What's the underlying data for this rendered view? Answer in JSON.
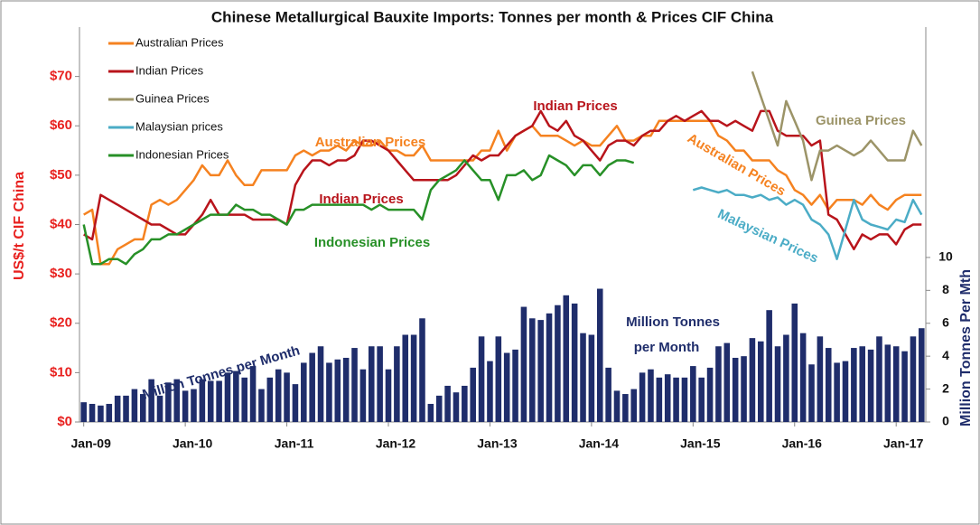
{
  "chart_data": {
    "type": "bar-line",
    "title": "Chinese Metallurgical Bauxite Imports: Tonnes per month & Prices CIF China",
    "y_label": "US$/t CIF China",
    "y2_label": "Million Tonnes Per Mth",
    "categories": [
      "Jan-09",
      null,
      null,
      null,
      null,
      null,
      null,
      null,
      null,
      null,
      null,
      null,
      "Jan-10",
      null,
      null,
      null,
      null,
      null,
      null,
      null,
      null,
      null,
      null,
      null,
      "Jan-11",
      null,
      null,
      null,
      null,
      null,
      null,
      null,
      null,
      null,
      null,
      null,
      "Jan-12",
      null,
      null,
      null,
      null,
      null,
      null,
      null,
      null,
      null,
      null,
      null,
      "Jan-13",
      null,
      null,
      null,
      null,
      null,
      null,
      null,
      null,
      null,
      null,
      null,
      "Jan-14",
      null,
      null,
      null,
      null,
      null,
      null,
      null,
      null,
      null,
      null,
      null,
      "Jan-15",
      null,
      null,
      null,
      null,
      null,
      null,
      null,
      null,
      null,
      null,
      null,
      "Jan-16",
      null,
      null,
      null,
      null,
      null,
      null,
      null,
      null,
      null,
      null,
      null,
      "Jan-17",
      null,
      null,
      null
    ],
    "ylim": [
      0,
      80
    ],
    "yticks": [
      {
        "value": 0,
        "label": "$0"
      },
      {
        "value": 10,
        "label": "$10"
      },
      {
        "value": 20,
        "label": "$20"
      },
      {
        "value": 30,
        "label": "$30"
      },
      {
        "value": 40,
        "label": "$40"
      },
      {
        "value": 50,
        "label": "$50"
      },
      {
        "value": 60,
        "label": "$60"
      },
      {
        "value": 70,
        "label": "$70"
      }
    ],
    "y2lim": [
      0,
      24
    ],
    "y2ticks": [
      0,
      2,
      4,
      6,
      8,
      10
    ],
    "series": [
      {
        "name": "Million Tonnes per Month",
        "kind": "bar",
        "axis": "y2",
        "color": "#1f2d6b",
        "values": [
          1.2,
          1.1,
          1.0,
          1.1,
          1.6,
          1.6,
          2.0,
          1.7,
          2.6,
          1.6,
          2.4,
          2.6,
          1.9,
          2.0,
          2.6,
          2.5,
          2.5,
          3.0,
          3.1,
          2.7,
          3.4,
          2.0,
          2.7,
          3.2,
          3.0,
          2.3,
          3.6,
          4.2,
          4.6,
          3.6,
          3.8,
          3.9,
          4.5,
          3.2,
          4.6,
          4.6,
          3.2,
          4.6,
          5.3,
          5.3,
          6.3,
          1.1,
          1.6,
          2.2,
          1.8,
          2.2,
          3.3,
          5.2,
          3.7,
          5.2,
          4.2,
          4.4,
          7.0,
          6.3,
          6.2,
          6.6,
          7.1,
          7.7,
          7.2,
          5.4,
          5.3,
          8.1,
          3.3,
          1.9,
          1.7,
          2.0,
          3.0,
          3.2,
          2.7,
          2.9,
          2.7,
          2.7,
          3.4,
          2.7,
          3.3,
          4.6,
          4.8,
          3.9,
          4.0,
          5.1,
          4.9,
          6.8,
          4.6,
          5.3,
          7.2,
          5.4,
          3.5,
          5.2,
          4.5,
          3.6,
          3.7,
          4.5,
          4.6,
          4.4,
          5.2,
          4.7,
          4.6,
          4.3,
          5.2,
          5.7
        ]
      },
      {
        "name": "Australian Prices",
        "kind": "line",
        "color": "#f58220",
        "values": [
          42,
          43,
          32,
          32,
          35,
          36,
          37,
          37,
          44,
          45,
          44,
          45,
          47,
          49,
          52,
          50,
          50,
          53,
          50,
          48,
          48,
          51,
          51,
          51,
          51,
          54,
          55,
          54,
          55,
          55,
          56,
          55,
          57,
          56,
          56,
          57,
          55,
          55,
          54,
          54,
          56,
          53,
          53,
          53,
          53,
          53,
          53,
          55,
          55,
          59,
          55,
          58,
          59,
          60,
          58,
          58,
          58,
          57,
          56,
          57,
          56,
          56,
          58,
          60,
          57,
          57,
          58,
          58,
          61,
          61,
          61,
          61,
          61,
          61,
          61,
          58,
          57,
          55,
          55,
          53,
          53,
          53,
          51,
          50,
          47,
          46,
          44,
          46,
          43,
          45,
          45,
          45,
          44,
          46,
          44,
          43,
          45,
          46,
          46,
          46
        ]
      },
      {
        "name": "Indian Prices",
        "kind": "line",
        "color": "#b8141b",
        "values": [
          38,
          37,
          46,
          45,
          44,
          43,
          42,
          41,
          40,
          40,
          39,
          38,
          38,
          40,
          42,
          45,
          42,
          42,
          42,
          42,
          41,
          41,
          41,
          41,
          40,
          48,
          51,
          53,
          53,
          52,
          53,
          53,
          54,
          57,
          57,
          56,
          55,
          53,
          51,
          49,
          49,
          49,
          49,
          49,
          50,
          52,
          54,
          53,
          54,
          54,
          56,
          58,
          59,
          60,
          63,
          60,
          59,
          61,
          58,
          57,
          55,
          53,
          56,
          57,
          57,
          56,
          58,
          59,
          59,
          61,
          62,
          61,
          62,
          63,
          61,
          61,
          60,
          61,
          60,
          59,
          63,
          63,
          59,
          58,
          58,
          58,
          56,
          57,
          42,
          41,
          38,
          35,
          38,
          37,
          38,
          38,
          36,
          39,
          40,
          40
        ]
      },
      {
        "name": "Guinea Prices",
        "kind": "line",
        "color": "#9c9468",
        "values": [
          null,
          null,
          null,
          null,
          null,
          null,
          null,
          null,
          null,
          null,
          null,
          null,
          null,
          null,
          null,
          null,
          null,
          null,
          null,
          null,
          null,
          null,
          null,
          null,
          null,
          null,
          null,
          null,
          null,
          null,
          null,
          null,
          null,
          null,
          null,
          null,
          null,
          null,
          null,
          null,
          null,
          null,
          null,
          null,
          null,
          null,
          null,
          null,
          null,
          null,
          null,
          null,
          null,
          null,
          null,
          null,
          null,
          null,
          null,
          null,
          null,
          null,
          null,
          null,
          null,
          null,
          null,
          null,
          null,
          null,
          null,
          null,
          null,
          null,
          null,
          null,
          null,
          null,
          null,
          71,
          66,
          61,
          56,
          65,
          61,
          57,
          49,
          55,
          55,
          56,
          55,
          54,
          55,
          57,
          55,
          53,
          53,
          53,
          59,
          56
        ]
      },
      {
        "name": "Malaysian prices",
        "kind": "line",
        "color": "#4bacc6",
        "values": [
          null,
          null,
          null,
          null,
          null,
          null,
          null,
          null,
          null,
          null,
          null,
          null,
          null,
          null,
          null,
          null,
          null,
          null,
          null,
          null,
          null,
          null,
          null,
          null,
          null,
          null,
          null,
          null,
          null,
          null,
          null,
          null,
          null,
          null,
          null,
          null,
          null,
          null,
          null,
          null,
          null,
          null,
          null,
          null,
          null,
          null,
          null,
          null,
          null,
          null,
          null,
          null,
          null,
          null,
          null,
          null,
          null,
          null,
          null,
          null,
          null,
          null,
          null,
          null,
          null,
          null,
          null,
          null,
          null,
          null,
          null,
          null,
          47,
          47.5,
          47,
          46.5,
          47,
          46,
          46,
          45.5,
          46,
          45,
          45.5,
          44,
          45,
          44,
          41,
          40,
          38,
          33,
          39,
          45,
          41,
          40,
          39.5,
          39,
          41,
          40.5,
          45,
          42
        ]
      },
      {
        "name": "Indonesian Prices",
        "kind": "line",
        "color": "#279027",
        "values": [
          40,
          32,
          32,
          33,
          33,
          32,
          34,
          35,
          37,
          37,
          38,
          38,
          39,
          40,
          41,
          42,
          42,
          42,
          44,
          43,
          43,
          42,
          42,
          41,
          40,
          43,
          43,
          44,
          44,
          44,
          44,
          44,
          44,
          44,
          43,
          44,
          43,
          43,
          43,
          43,
          41,
          47,
          49,
          50,
          51,
          53,
          51,
          49,
          49,
          45,
          50,
          50,
          51,
          49,
          50,
          54,
          53,
          52,
          50,
          52,
          52,
          50,
          52,
          53,
          53,
          52.5,
          null,
          null,
          null,
          null,
          null,
          null,
          null,
          null,
          null,
          null,
          null,
          null,
          null,
          null,
          null,
          null,
          null,
          null,
          null,
          null,
          null,
          null,
          null,
          null,
          null,
          null,
          null,
          null,
          null,
          null,
          null,
          null,
          null,
          null
        ]
      }
    ],
    "annotations": [
      {
        "text": "Australian Prices",
        "color": "#f58220"
      },
      {
        "text": "Indian Prices",
        "color": "#b8141b"
      },
      {
        "text": "Guinea Prices",
        "color": "#9c9468"
      },
      {
        "text": "Indian Prices",
        "color": "#b8141b"
      },
      {
        "text": "Indonesian Prices",
        "color": "#279027"
      },
      {
        "text": "Australian Prices",
        "color": "#f58220"
      },
      {
        "text": "Malaysian Prices",
        "color": "#4bacc6"
      },
      {
        "text": "Million Tonnes per Month",
        "color": "#1f2d6b"
      },
      {
        "text": "Million Tonnes",
        "color": "#1f2d6b"
      },
      {
        "text": "per Month",
        "color": "#1f2d6b"
      }
    ]
  }
}
